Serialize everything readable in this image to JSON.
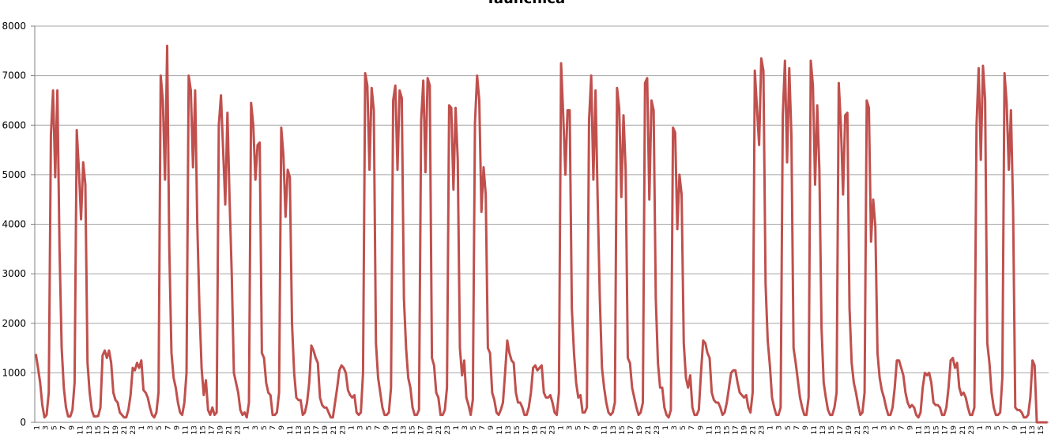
{
  "chart_data": {
    "type": "line",
    "title": "Taunchica",
    "xlabel": "",
    "ylabel": "",
    "ylim": [
      0,
      8000
    ],
    "yticks": [
      "0",
      "1000",
      "2000",
      "3000",
      "4000",
      "5000",
      "6000",
      "7000",
      "8000"
    ],
    "grid": true,
    "legend": "none",
    "colors": {
      "line": "#c0504d",
      "grid": "#a6a6a6",
      "axis": "#808080"
    },
    "xtick_pattern": [
      "1",
      "3",
      "5",
      "7",
      "9",
      "11",
      "13",
      "15",
      "17",
      "19",
      "21",
      "23"
    ],
    "series": [
      {
        "name": "",
        "values": [
          1380,
          1100,
          800,
          350,
          100,
          150,
          600,
          5800,
          6700,
          4950,
          6700,
          3500,
          1500,
          700,
          300,
          120,
          120,
          250,
          800,
          5900,
          5100,
          4100,
          5250,
          4800,
          1200,
          600,
          250,
          120,
          120,
          130,
          300,
          1350,
          1450,
          1300,
          1450,
          1200,
          600,
          450,
          400,
          200,
          150,
          100,
          100,
          250,
          550,
          1100,
          1050,
          1200,
          1100,
          1250,
          650,
          600,
          500,
          300,
          150,
          100,
          200,
          600,
          7000,
          6500,
          4900,
          7600,
          3500,
          1400,
          900,
          700,
          400,
          200,
          150,
          400,
          1000,
          7000,
          6700,
          5150,
          6700,
          4000,
          2300,
          1100,
          550,
          850,
          250,
          150,
          300,
          150,
          200,
          6000,
          6600,
          5500,
          4400,
          6250,
          4500,
          3000,
          1000,
          800,
          600,
          250,
          150,
          200,
          100,
          400,
          6450,
          6000,
          4900,
          5600,
          5650,
          1400,
          1300,
          800,
          600,
          550,
          150,
          150,
          200,
          600,
          5950,
          5400,
          4150,
          5100,
          4950,
          2000,
          1000,
          500,
          450,
          450,
          150,
          200,
          400,
          800,
          1550,
          1450,
          1300,
          1200,
          500,
          350,
          300,
          300,
          200,
          100,
          100,
          400,
          700,
          1050,
          1150,
          1100,
          1000,
          650,
          550,
          500,
          550,
          200,
          150,
          200,
          1000,
          7050,
          6800,
          5100,
          6750,
          6300,
          1600,
          900,
          600,
          300,
          150,
          150,
          200,
          700,
          6500,
          6800,
          5100,
          6700,
          6550,
          2500,
          1500,
          900,
          700,
          300,
          150,
          150,
          250,
          6100,
          6900,
          5050,
          6950,
          6800,
          1300,
          1150,
          600,
          500,
          150,
          150,
          250,
          700,
          6400,
          6350,
          4700,
          6350,
          5300,
          1500,
          950,
          1250,
          500,
          350,
          150,
          450,
          6050,
          7000,
          6500,
          4250,
          5150,
          4600,
          1500,
          1400,
          600,
          450,
          200,
          150,
          250,
          400,
          1000,
          1650,
          1400,
          1250,
          1200,
          600,
          400,
          400,
          300,
          150,
          150,
          300,
          600,
          1100,
          1150,
          1050,
          1100,
          1150,
          600,
          500,
          500,
          550,
          400,
          200,
          150,
          600,
          7250,
          6200,
          5000,
          6300,
          6300,
          2300,
          1400,
          800,
          500,
          550,
          200,
          200,
          300,
          6100,
          7000,
          4900,
          6700,
          4500,
          2500,
          1100,
          700,
          400,
          200,
          150,
          200,
          400,
          6750,
          6350,
          4550,
          6200,
          5100,
          1300,
          1200,
          700,
          500,
          300,
          150,
          200,
          400,
          6850,
          6950,
          4500,
          6500,
          6300,
          2500,
          1200,
          700,
          700,
          300,
          150,
          100,
          250,
          5950,
          5850,
          3900,
          5000,
          4600,
          1600,
          900,
          700,
          950,
          300,
          150,
          150,
          250,
          1000,
          1650,
          1600,
          1400,
          1300,
          600,
          450,
          400,
          400,
          300,
          150,
          200,
          400,
          700,
          1000,
          1050,
          1050,
          800,
          600,
          550,
          500,
          550,
          300,
          200,
          600,
          7100,
          6350,
          5600,
          7350,
          7100,
          2800,
          1650,
          1150,
          500,
          300,
          150,
          150,
          300,
          6200,
          7300,
          5250,
          7150,
          5800,
          1500,
          1200,
          850,
          500,
          300,
          150,
          150,
          500,
          7300,
          6800,
          4800,
          6400,
          5100,
          1900,
          800,
          500,
          250,
          150,
          150,
          300,
          600,
          6850,
          6000,
          4600,
          6200,
          6250,
          2300,
          1200,
          800,
          600,
          350,
          150,
          200,
          600,
          6500,
          6350,
          3650,
          4500,
          3950,
          1400,
          900,
          650,
          500,
          300,
          150,
          150,
          300,
          700,
          1250,
          1250,
          1100,
          950,
          600,
          400,
          300,
          350,
          300,
          150,
          100,
          200,
          700,
          1000,
          950,
          1000,
          800,
          400,
          350,
          350,
          300,
          150,
          150,
          300,
          700,
          1250,
          1300,
          1100,
          1200,
          700,
          550,
          600,
          500,
          300,
          150,
          150,
          300,
          6000,
          7150,
          5300,
          7200,
          6500,
          1600,
          1200,
          600,
          300,
          150,
          150,
          200,
          900,
          7050,
          6450,
          5100,
          6300,
          4300,
          300,
          250,
          250,
          200,
          100,
          100,
          150,
          500,
          1250,
          1150,
          0,
          0,
          0,
          0,
          0,
          0
        ]
      }
    ]
  }
}
